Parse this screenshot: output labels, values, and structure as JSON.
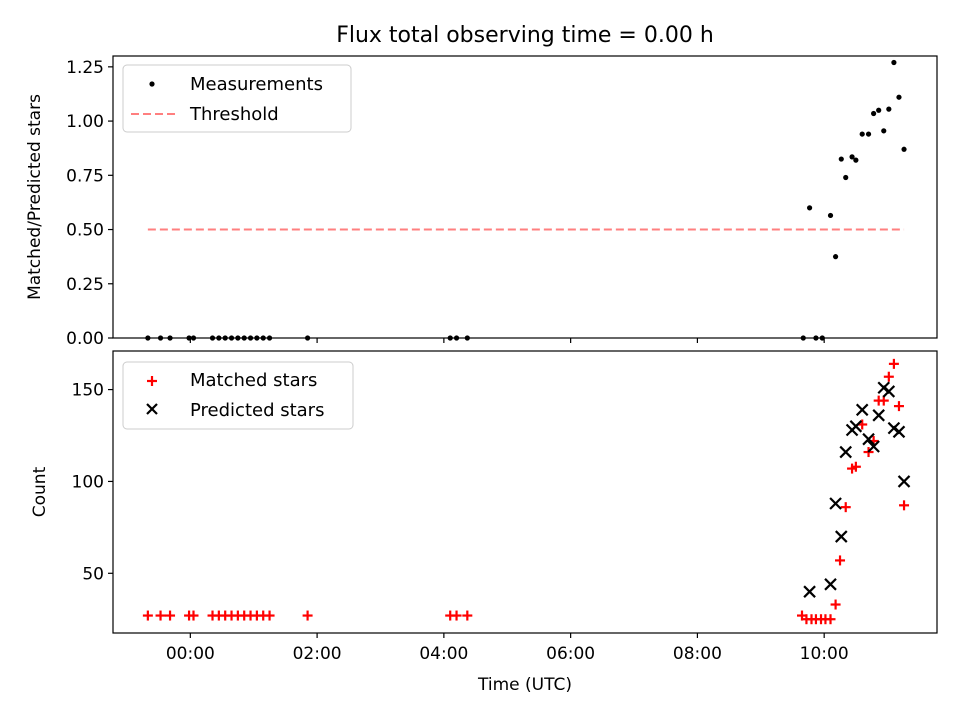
{
  "chart_data": [
    {
      "type": "scatter",
      "title": "Flux total observing time = 0.00 h",
      "xlabel": "",
      "ylabel": "Matched/Predicted stars",
      "xlim": [
        -1.22,
        11.78
      ],
      "ylim": [
        0,
        1.3
      ],
      "yticks": [
        0.0,
        0.25,
        0.5,
        0.75,
        1.0,
        1.25
      ],
      "yticklabels": [
        "0.00",
        "0.25",
        "0.50",
        "0.75",
        "1.00",
        "1.25"
      ],
      "legend_position": "upper-left",
      "legend": [
        "Measurements",
        "Threshold"
      ],
      "series": [
        {
          "name": "Measurements",
          "marker": "dot",
          "color": "#000000",
          "x": [
            -0.67,
            -0.47,
            -0.32,
            -0.02,
            0.05,
            0.35,
            0.45,
            0.55,
            0.65,
            0.75,
            0.85,
            0.95,
            1.05,
            1.15,
            1.25,
            1.85,
            4.1,
            4.2,
            4.37,
            9.67,
            9.77,
            9.87,
            9.97,
            10.1,
            10.18,
            10.27,
            10.34,
            10.44,
            10.5,
            10.6,
            10.7,
            10.78,
            10.86,
            10.94,
            11.02,
            11.1,
            11.18,
            11.26
          ],
          "y": [
            0,
            0,
            0,
            0,
            0,
            0,
            0,
            0,
            0,
            0,
            0,
            0,
            0,
            0,
            0,
            0,
            0,
            0,
            0,
            0,
            0.6,
            0,
            0,
            0.565,
            0.375,
            0.825,
            0.74,
            0.835,
            0.82,
            0.94,
            0.94,
            1.035,
            1.05,
            0.955,
            1.055,
            1.27,
            1.11,
            0.87
          ]
        },
        {
          "name": "Threshold",
          "style": "dashed",
          "color": "#ff7f7f",
          "x": [
            -0.67,
            11.26
          ],
          "y": [
            0.5,
            0.5
          ]
        }
      ]
    },
    {
      "type": "scatter",
      "title": "",
      "xlabel": "Time (UTC)",
      "ylabel": "Count",
      "xlim": [
        -1.22,
        11.78
      ],
      "ylim": [
        17.5,
        171
      ],
      "yticks": [
        50,
        100,
        150
      ],
      "yticklabels": [
        "50",
        "100",
        "150"
      ],
      "xticks": [
        0,
        2,
        4,
        6,
        8,
        10
      ],
      "xticklabels": [
        "00:00",
        "02:00",
        "04:00",
        "06:00",
        "08:00",
        "10:00"
      ],
      "legend_position": "upper-left",
      "legend": [
        "Matched stars",
        "Predicted stars"
      ],
      "series": [
        {
          "name": "Matched stars",
          "marker": "plus",
          "color": "#ff0000",
          "x": [
            -0.67,
            -0.47,
            -0.32,
            -0.02,
            0.05,
            0.35,
            0.45,
            0.55,
            0.65,
            0.75,
            0.85,
            0.95,
            1.05,
            1.15,
            1.25,
            1.85,
            4.1,
            4.2,
            4.37,
            9.65,
            9.72,
            9.8,
            9.87,
            9.95,
            10.02,
            10.1,
            10.18,
            10.25,
            10.34,
            10.44,
            10.5,
            10.6,
            10.7,
            10.78,
            10.86,
            10.94,
            11.02,
            11.1,
            11.18,
            11.26
          ],
          "y": [
            27,
            27,
            27,
            27,
            27,
            27,
            27,
            27,
            27,
            27,
            27,
            27,
            27,
            27,
            27,
            27,
            27,
            27,
            27,
            27,
            25,
            25,
            25,
            25,
            25,
            25,
            33,
            57,
            86,
            107,
            108,
            131,
            116,
            122,
            144,
            144,
            157,
            164,
            141,
            87
          ]
        },
        {
          "name": "Predicted stars",
          "marker": "x",
          "color": "#000000",
          "x": [
            9.77,
            10.1,
            10.18,
            10.27,
            10.34,
            10.44,
            10.5,
            10.6,
            10.7,
            10.78,
            10.86,
            10.94,
            11.02,
            11.1,
            11.18,
            11.26
          ],
          "y": [
            40,
            44,
            88,
            70,
            116,
            128,
            130,
            139,
            123,
            119,
            136,
            151,
            149,
            129,
            127,
            100
          ]
        }
      ]
    }
  ]
}
